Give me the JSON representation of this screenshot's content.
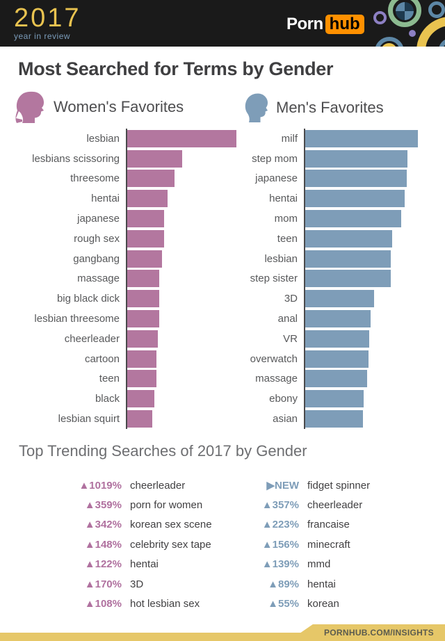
{
  "header": {
    "logo_year": "2017",
    "logo_tagline": "year in review",
    "brand_porn": "Porn",
    "brand_hub": "hub"
  },
  "page_title": "Most Searched for Terms by Gender",
  "colors": {
    "women_accent": "#b3779f",
    "men_accent": "#7e9db8",
    "header_bg": "#1a1a1a",
    "gold": "#e9c350",
    "hub_orange": "#ff9000",
    "footer_yellow": "#e6c768"
  },
  "chart_data": [
    {
      "type": "bar",
      "title": "Women's Favorites",
      "orientation": "horizontal",
      "legend_position": "above-chart",
      "grid": false,
      "ylabel": "",
      "xlabel": "",
      "value_note": "relative search volume, % of top term (estimated from bar lengths; no numeric axis shown)",
      "xlim": [
        0,
        100
      ],
      "color": "#b3779f",
      "categories": [
        "lesbian",
        "lesbians scissoring",
        "threesome",
        "hentai",
        "japanese",
        "rough sex",
        "gangbang",
        "massage",
        "big black dick",
        "lesbian threesome",
        "cheerleader",
        "cartoon",
        "teen",
        "black",
        "lesbian squirt"
      ],
      "values": [
        100,
        50,
        43,
        37,
        34,
        34,
        32,
        29,
        29,
        29,
        28,
        27,
        27,
        25,
        23
      ]
    },
    {
      "type": "bar",
      "title": "Men's Favorites",
      "orientation": "horizontal",
      "legend_position": "above-chart",
      "grid": false,
      "ylabel": "",
      "xlabel": "",
      "value_note": "relative search volume, % of top term (estimated from bar lengths; no numeric axis shown)",
      "xlim": [
        0,
        100
      ],
      "color": "#7e9db8",
      "categories": [
        "milf",
        "step mom",
        "japanese",
        "hentai",
        "mom",
        "teen",
        "lesbian",
        "step sister",
        "3D",
        "anal",
        "VR",
        "overwatch",
        "massage",
        "ebony",
        "asian"
      ],
      "values": [
        100,
        91,
        90,
        88,
        85,
        77,
        76,
        76,
        61,
        58,
        57,
        56,
        55,
        52,
        51
      ]
    },
    {
      "type": "table",
      "title": "Top Trending Searches of 2017 by Gender",
      "columns": [
        "change",
        "term"
      ],
      "women_rows": [
        [
          "▲1019%",
          "cheerleader"
        ],
        [
          "▲359%",
          "porn for women"
        ],
        [
          "▲342%",
          "korean sex scene"
        ],
        [
          "▲148%",
          "celebrity sex tape"
        ],
        [
          "▲122%",
          "hentai"
        ],
        [
          "▲170%",
          "3D"
        ],
        [
          "▲108%",
          "hot lesbian sex"
        ]
      ],
      "men_rows": [
        [
          "▶NEW",
          "fidget spinner"
        ],
        [
          "▲357%",
          "cheerleader"
        ],
        [
          "▲223%",
          "francaise"
        ],
        [
          "▲156%",
          "minecraft"
        ],
        [
          "▲139%",
          "mmd"
        ],
        [
          "▲89%",
          "hentai"
        ],
        [
          "▲55%",
          "korean"
        ]
      ]
    }
  ],
  "icons": {
    "women_legend": "woman-head-silhouette",
    "men_legend": "man-head-silhouette",
    "up_arrow": "▲",
    "new_arrow": "▶"
  },
  "footer": {
    "link": "PORNHUB.COM/INSIGHTS"
  }
}
